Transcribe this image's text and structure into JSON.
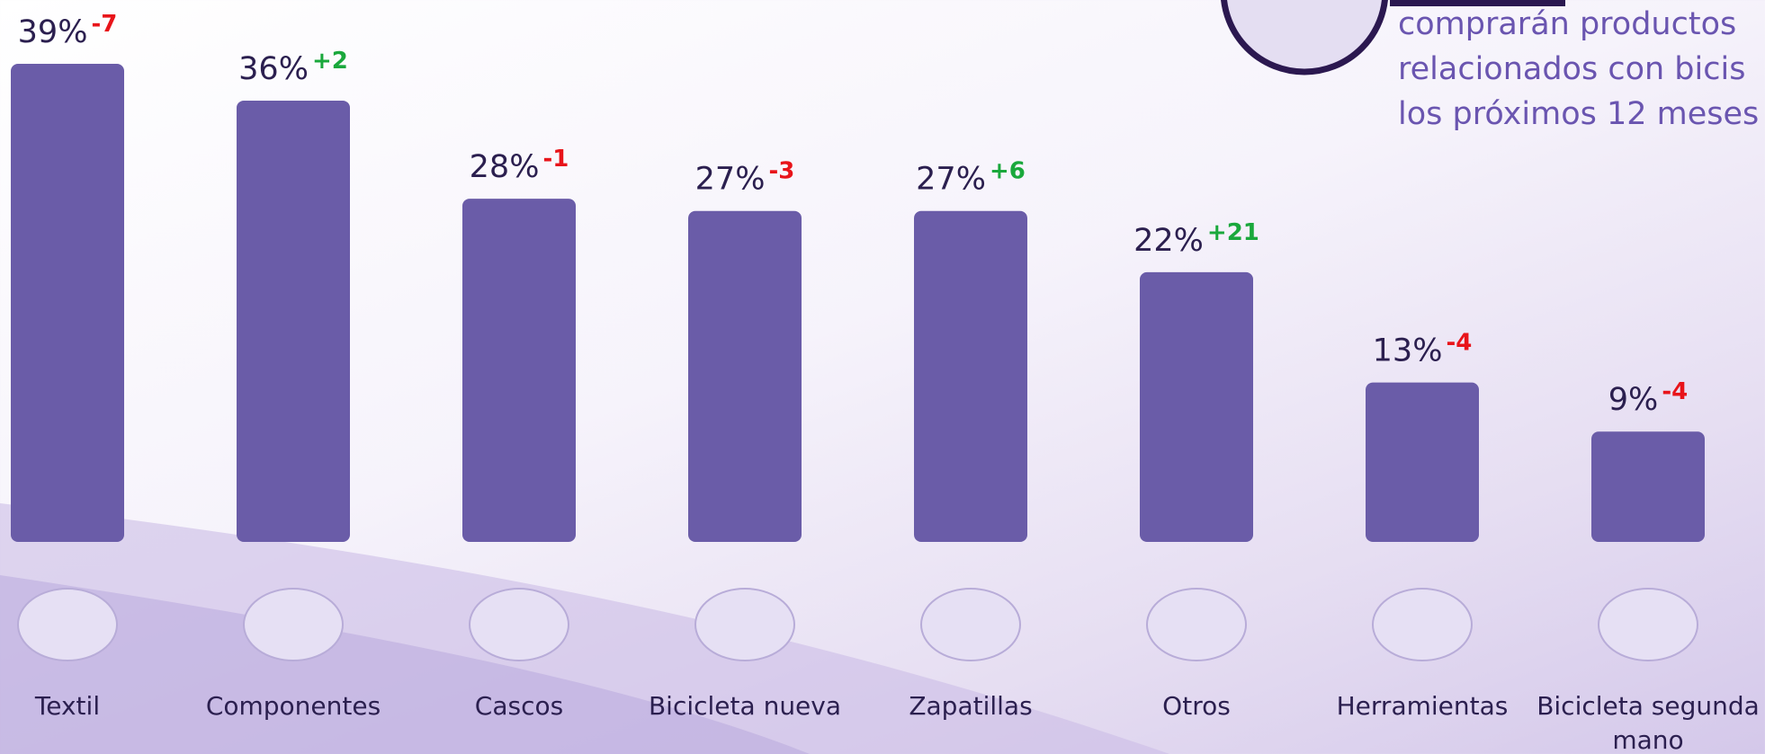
{
  "chart_data": {
    "type": "bar",
    "categories": [
      "Textil",
      "Componentes",
      "Cascos",
      "Bicicleta nueva",
      "Zapatillas",
      "Otros",
      "Herramientas",
      "Bicicleta segunda mano"
    ],
    "values": [
      39,
      36,
      28,
      27,
      27,
      22,
      13,
      9
    ],
    "value_labels": [
      "39%",
      "36%",
      "28%",
      "27%",
      "27%",
      "22%",
      "13%",
      "9%"
    ],
    "change_labels": [
      "-7",
      "+2",
      "-1",
      "-3",
      "+6",
      "+21",
      "-4",
      "-4"
    ],
    "color": "#6a5ca8",
    "note_lines": [
      "comprarán productos",
      "relacionados con bicis",
      "los próximos 12 meses"
    ]
  }
}
